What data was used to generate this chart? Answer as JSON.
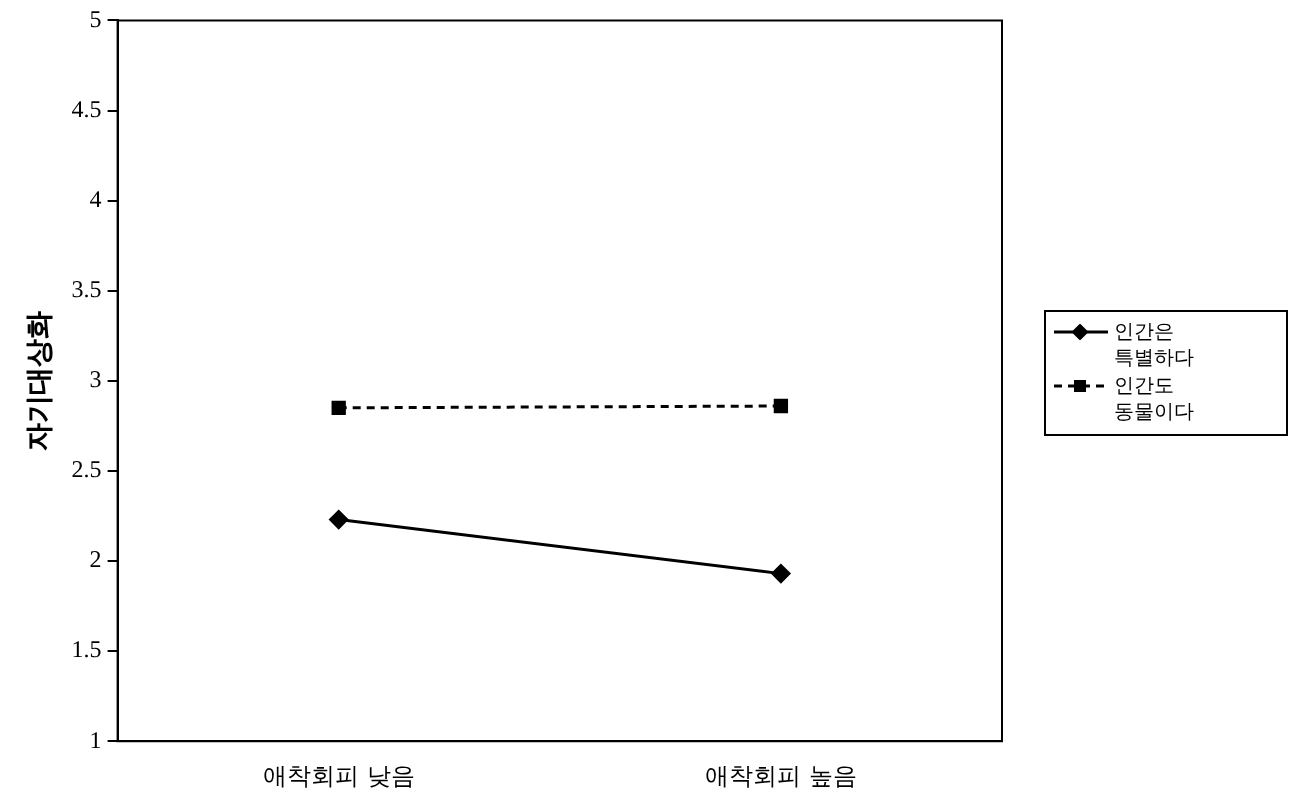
{
  "chart_data": {
    "type": "line",
    "ylabel": "자기대상화",
    "categories": [
      "애착회피 낮음",
      "애착회피 높음"
    ],
    "series": [
      {
        "name": "인간은 특별하다",
        "color": "#000000",
        "values": [
          2.23,
          1.93
        ],
        "marker": "diamond",
        "line_style": "solid"
      },
      {
        "name": "인간도 동물이다",
        "color": "#000000",
        "values": [
          2.85,
          2.86
        ],
        "marker": "square",
        "line_style": "dashed"
      }
    ],
    "ylim": [
      1,
      5
    ],
    "yticks": [
      1,
      1.5,
      2,
      2.5,
      3,
      3.5,
      4,
      4.5,
      5
    ],
    "grid": false,
    "legend": "right"
  }
}
